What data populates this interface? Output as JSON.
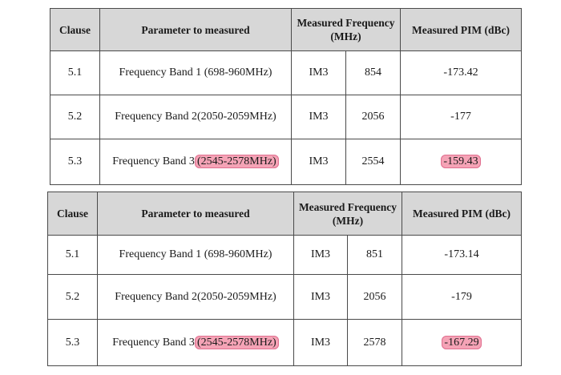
{
  "tables": [
    {
      "headers": {
        "clause": "Clause",
        "parameter": "Parameter to measured",
        "frequency": "Measured Frequency (MHz)",
        "pim": "Measured PIM (dBc)"
      },
      "rows": [
        {
          "clause": "5.1",
          "param_prefix": "Frequency Band 1 (698-960MHz)",
          "param_highlight": "",
          "mode": "IM3",
          "freq": "854",
          "pim": "-173.42",
          "pim_highlighted": false
        },
        {
          "clause": "5.2",
          "param_prefix": "Frequency Band 2(2050-2059MHz)",
          "param_highlight": "",
          "mode": "IM3",
          "freq": "2056",
          "pim": "-177",
          "pim_highlighted": false
        },
        {
          "clause": "5.3",
          "param_prefix": "Frequency Band 3",
          "param_highlight": "(2545-2578MHz)",
          "mode": "IM3",
          "freq": "2554",
          "pim": "-159.43",
          "pim_highlighted": true
        }
      ]
    },
    {
      "headers": {
        "clause": "Clause",
        "parameter": "Parameter to measured",
        "frequency": "Measured Frequency (MHz)",
        "pim": "Measured PIM (dBc)"
      },
      "rows": [
        {
          "clause": "5.1",
          "param_prefix": "Frequency Band 1 (698-960MHz)",
          "param_highlight": "",
          "mode": "IM3",
          "freq": "851",
          "pim": "-173.14",
          "pim_highlighted": false
        },
        {
          "clause": "5.2",
          "param_prefix": "Frequency Band 2(2050-2059MHz)",
          "param_highlight": "",
          "mode": "IM3",
          "freq": "2056",
          "pim": "-179",
          "pim_highlighted": false
        },
        {
          "clause": "5.3",
          "param_prefix": "Frequency Band 3",
          "param_highlight": "(2545-2578MHz)",
          "mode": "IM3",
          "freq": "2578",
          "pim": "-167.29",
          "pim_highlighted": true
        }
      ]
    }
  ],
  "colors": {
    "header_bg": "#d7d7d7",
    "highlight": "#f5a3b6",
    "border": "#4a4a4a"
  }
}
